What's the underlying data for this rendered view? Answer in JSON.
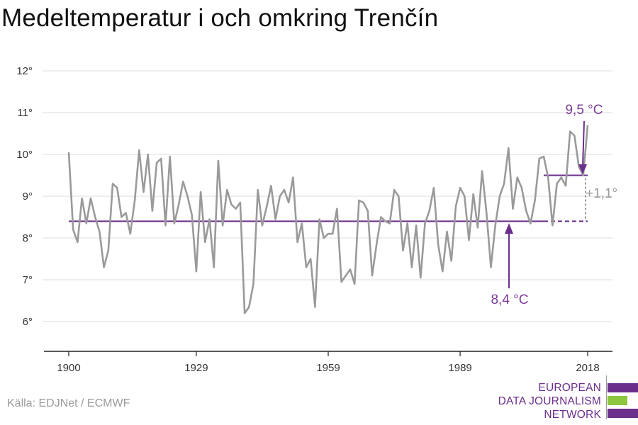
{
  "title": "Medeltemperatur i och omkring Trenčín",
  "source": "Källa: EDJNet / ECMWF",
  "logo": {
    "line1": "EUROPEAN",
    "line2": "DATA JOURNALISM",
    "line3": "NETWORK"
  },
  "colors": {
    "series": "#9a9a9a",
    "accent": "#6b2f8c",
    "logo_green": "#8dc63f",
    "grid": "#dddddd"
  },
  "chart_data": {
    "type": "line",
    "title": "Medeltemperatur i och omkring Trenčín",
    "x_ticks": [
      "1900",
      "1929",
      "1959",
      "1989",
      "2018"
    ],
    "y_ticks": [
      "6°",
      "7°",
      "8°",
      "9°",
      "10°",
      "11°",
      "12°"
    ],
    "ylim": [
      5.3,
      12.3
    ],
    "xlim": [
      1898,
      2024
    ],
    "grid": true,
    "series": [
      {
        "x": [
          1900,
          1901,
          1902,
          1903,
          1904,
          1905,
          1906,
          1907,
          1908,
          1909,
          1910,
          1911,
          1912,
          1913,
          1914,
          1915,
          1916,
          1917,
          1918,
          1919,
          1920,
          1921,
          1922,
          1923,
          1924,
          1925,
          1926,
          1927,
          1928,
          1929,
          1930,
          1931,
          1932,
          1933,
          1934,
          1935,
          1936,
          1937,
          1938,
          1939,
          1940,
          1941,
          1942,
          1943,
          1944,
          1945,
          1946,
          1947,
          1948,
          1949,
          1950,
          1951,
          1952,
          1953,
          1954,
          1955,
          1956,
          1957,
          1958,
          1959,
          1960,
          1961,
          1962,
          1963,
          1964,
          1965,
          1966,
          1967,
          1968,
          1969,
          1970,
          1971,
          1972,
          1973,
          1974,
          1975,
          1976,
          1977,
          1978,
          1979,
          1980,
          1981,
          1982,
          1983,
          1984,
          1985,
          1986,
          1987,
          1988,
          1989,
          1990,
          1991,
          1992,
          1993,
          1994,
          1995,
          1996,
          1997,
          1998,
          1999,
          2000,
          2001,
          2002,
          2003,
          2004,
          2005,
          2006,
          2007,
          2008,
          2009,
          2010,
          2011,
          2012,
          2013,
          2014,
          2015,
          2016,
          2017,
          2018
        ],
        "values": [
          10.05,
          8.2,
          7.9,
          8.95,
          8.35,
          8.95,
          8.5,
          8.15,
          7.3,
          7.7,
          9.3,
          9.2,
          8.5,
          8.6,
          8.1,
          8.9,
          10.1,
          9.1,
          10.0,
          8.65,
          9.8,
          9.9,
          8.3,
          9.95,
          8.35,
          8.8,
          9.35,
          9.0,
          8.55,
          7.2,
          9.1,
          7.9,
          8.45,
          7.3,
          9.85,
          8.3,
          9.15,
          8.8,
          8.7,
          8.85,
          6.2,
          6.35,
          6.9,
          9.15,
          8.3,
          8.75,
          9.25,
          8.45,
          9.0,
          9.15,
          8.85,
          9.45,
          7.9,
          8.35,
          7.3,
          7.5,
          6.35,
          8.45,
          8.0,
          8.1,
          8.1,
          8.7,
          6.95,
          7.1,
          7.25,
          6.9,
          8.9,
          8.85,
          8.65,
          7.1,
          7.85,
          8.5,
          8.4,
          8.35,
          9.15,
          9.0,
          7.7,
          8.35,
          7.3,
          8.3,
          7.05,
          8.35,
          8.65,
          9.2,
          7.85,
          7.2,
          8.15,
          7.45,
          8.75,
          9.2,
          9.0,
          7.95,
          9.05,
          8.25,
          9.6,
          8.6,
          7.3,
          8.3,
          9.0,
          9.3,
          10.15,
          8.7,
          9.45,
          9.2,
          8.65,
          8.35,
          8.9,
          9.9,
          9.95,
          9.45,
          8.3,
          9.3,
          9.45,
          9.25,
          10.55,
          10.45,
          9.7,
          9.5,
          10.7
        ]
      }
    ],
    "baseline": {
      "value": 8.4,
      "label": "8,4 °C",
      "x_start": 1900,
      "x_end": 2018
    },
    "recent": {
      "value": 9.5,
      "label": "9,5 °C",
      "x_start": 2008,
      "x_end": 2018
    },
    "difference_label": "+1,1°"
  }
}
